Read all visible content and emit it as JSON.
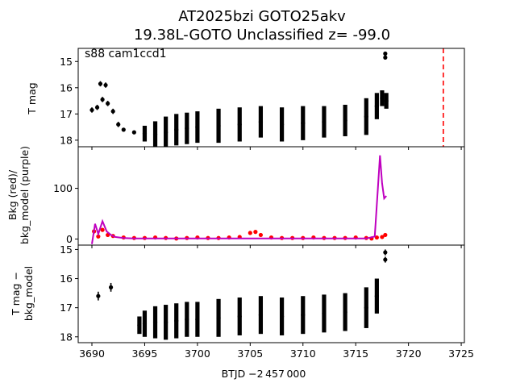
{
  "chart_data": {
    "title_line1": "AT2025bzi  GOTO25akv",
    "title_line2": "19.38L-GOTO Unclassified z= -99.0",
    "xlabel": "BTJD −2 457 000",
    "xlim": [
      3688.7,
      3725.3
    ],
    "xticks": [
      3690,
      3695,
      3700,
      3705,
      3710,
      3715,
      3720,
      3725
    ],
    "panels": [
      {
        "id": "top",
        "type": "scatter",
        "ylabel": "T mag",
        "ylim": [
          18.25,
          14.5
        ],
        "yticks": [
          15,
          16,
          17,
          18
        ],
        "annotation": "s88 cam1ccd1",
        "vline_x": 3723.3,
        "vline_color": "#ff0000",
        "series": [
          {
            "color": "#000000",
            "x": [
              3690.0,
              3690.5,
              3691.0,
              3691.5,
              3692.0,
              3692.5,
              3693.0,
              3694.0,
              3695.0,
              3696.0,
              3697.0,
              3698.0,
              3699.0,
              3700.0,
              3702.0,
              3704.0,
              3706.0,
              3708.0,
              3710.0,
              3712.0,
              3714.0,
              3716.0,
              3717.0,
              3717.5,
              3717.9
            ],
            "y": [
              16.85,
              16.75,
              16.45,
              16.6,
              16.9,
              17.4,
              17.6,
              17.7,
              17.75,
              17.78,
              17.7,
              17.6,
              17.55,
              17.5,
              17.45,
              17.4,
              17.3,
              17.4,
              17.35,
              17.3,
              17.25,
              17.1,
              16.7,
              16.4,
              16.5
            ],
            "err": [
              0.1,
              0.1,
              0.1,
              0.1,
              0.1,
              0.1,
              0.05,
              0.05,
              0.3,
              0.5,
              0.6,
              0.6,
              0.6,
              0.6,
              0.65,
              0.65,
              0.6,
              0.65,
              0.65,
              0.6,
              0.6,
              0.7,
              0.5,
              0.3,
              0.3
            ]
          },
          {
            "color": "#000000",
            "x": [
              3690.8,
              3691.3,
              3717.8,
              3717.8
            ],
            "y": [
              15.85,
              15.9,
              14.7,
              14.85
            ],
            "err": [
              0.1,
              0.1,
              0.05,
              0.05
            ]
          }
        ]
      },
      {
        "id": "middle",
        "type": "line+scatter",
        "ylabel_line1": "Bkg (red)/",
        "ylabel_line2": "bkg_model (purple)",
        "ylim": [
          -12,
          182
        ],
        "yticks": [
          0,
          100
        ],
        "series": [
          {
            "color": "#ff0000",
            "x": [
              3690.2,
              3690.6,
              3691.0,
              3691.5,
              3692.0,
              3693.0,
              3694.0,
              3695.0,
              3696.0,
              3697.0,
              3698.0,
              3699.0,
              3700.0,
              3701.0,
              3702.0,
              3703.0,
              3704.0,
              3705.0,
              3705.5,
              3706.0,
              3707.0,
              3708.0,
              3709.0,
              3710.0,
              3711.0,
              3712.0,
              3713.0,
              3714.0,
              3715.0,
              3716.0,
              3716.5,
              3717.0,
              3717.5,
              3717.8
            ],
            "y": [
              15,
              5,
              18,
              8,
              6,
              3,
              2,
              2,
              3,
              2,
              1,
              2,
              3,
              2,
              2,
              3,
              4,
              12,
              14,
              8,
              3,
              2,
              2,
              2,
              3,
              2,
              2,
              2,
              3,
              2,
              1,
              3,
              4,
              8
            ]
          },
          {
            "color": "#bf00bf",
            "x": [
              3690.0,
              3690.3,
              3690.6,
              3691.0,
              3691.4,
              3691.8,
              3692.2,
              3693.0,
              3694.0,
              3696.0,
              3698.0,
              3700.0,
              3702.0,
              3704.0,
              3706.0,
              3708.0,
              3710.0,
              3712.0,
              3714.0,
              3716.0,
              3716.8,
              3717.1,
              3717.3,
              3717.5,
              3717.7,
              3717.9
            ],
            "y": [
              -10,
              30,
              10,
              35,
              15,
              8,
              4,
              2,
              1,
              1,
              1,
              1,
              1,
              1,
              1,
              1,
              1,
              1,
              1,
              1,
              5,
              100,
              165,
              110,
              80,
              85
            ]
          }
        ]
      },
      {
        "id": "bottom",
        "type": "scatter",
        "ylabel_line1": "T mag −",
        "ylabel_line2": "bkg_model",
        "ylim": [
          18.2,
          14.85
        ],
        "yticks": [
          15,
          16,
          17,
          18
        ],
        "series": [
          {
            "color": "#000000",
            "x": [
              3694.5,
              3695.0,
              3696.0,
              3697.0,
              3698.0,
              3699.0,
              3700.0,
              3702.0,
              3704.0,
              3706.0,
              3708.0,
              3710.0,
              3712.0,
              3714.0,
              3716.0,
              3717.0
            ],
            "y": [
              17.6,
              17.55,
              17.5,
              17.5,
              17.45,
              17.4,
              17.4,
              17.35,
              17.3,
              17.25,
              17.3,
              17.25,
              17.2,
              17.15,
              17.0,
              16.6
            ],
            "err": [
              0.3,
              0.45,
              0.55,
              0.6,
              0.6,
              0.6,
              0.6,
              0.65,
              0.65,
              0.65,
              0.65,
              0.65,
              0.65,
              0.65,
              0.7,
              0.6
            ]
          },
          {
            "color": "#000000",
            "x": [
              3690.6,
              3691.8,
              3717.8,
              3717.8
            ],
            "y": [
              16.6,
              16.3,
              15.1,
              15.35
            ],
            "err": [
              0.15,
              0.15,
              0.1,
              0.1
            ]
          }
        ]
      }
    ]
  }
}
